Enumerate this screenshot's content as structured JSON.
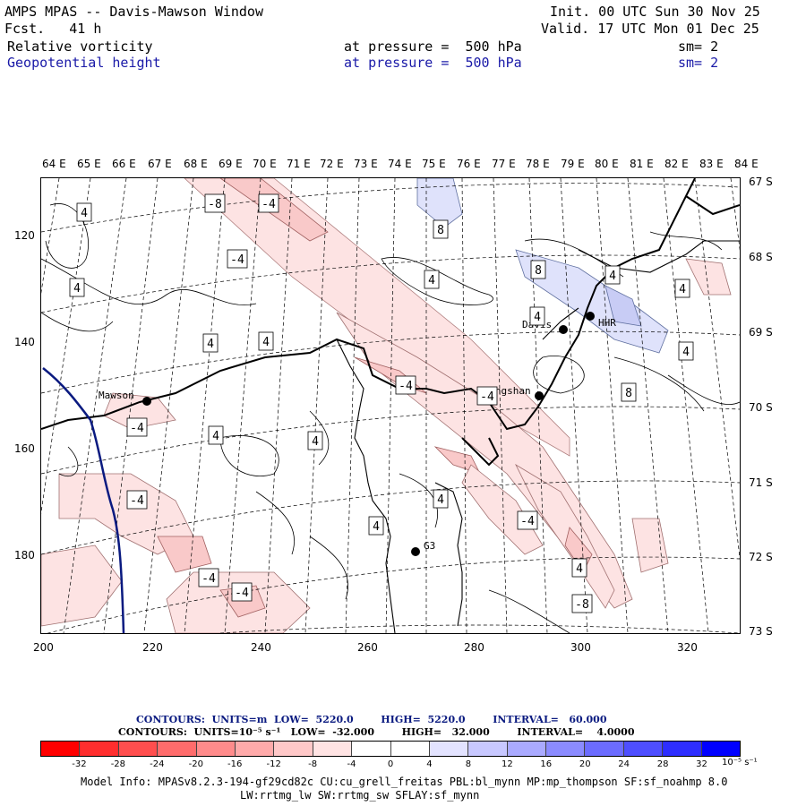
{
  "header": {
    "line1_left": "AMPS MPAS -- Davis-Mawson Window",
    "line2_left": "Fcst.   41 h",
    "line1_right": "Init. 00 UTC Sun 30 Nov 25",
    "line2_right": "Valid. 17 UTC Mon 01 Dec 25",
    "field1": {
      "name": "Relative vorticity",
      "level": "at pressure =  500 hPa",
      "sm": "sm= 2"
    },
    "field2": {
      "name": "Geopotential height",
      "level": "at pressure =  500 hPa",
      "sm": "sm= 2"
    }
  },
  "map": {
    "lon_labels": [
      "64 E",
      "65 E",
      "66 E",
      "67 E",
      "68 E",
      "69 E",
      "70 E",
      "71 E",
      "72 E",
      "73 E",
      "74 E",
      "75 E",
      "76 E",
      "77 E",
      "78 E",
      "79 E",
      "80 E",
      "81 E",
      "82 E",
      "83 E",
      "84 E"
    ],
    "lat_labels": [
      "67 S",
      "68 S",
      "69 S",
      "70 S",
      "71 S",
      "72 S",
      "73 S"
    ],
    "x_ticks": [
      "200",
      "220",
      "240",
      "260",
      "280",
      "300",
      "320"
    ],
    "y_ticks": [
      "120",
      "140",
      "160",
      "180"
    ],
    "stations": [
      "Mawson",
      "Davis",
      "Zhongshan",
      "G3",
      "HHR"
    ],
    "contour_labels": [
      "4",
      "-8",
      "-4",
      "8",
      "4",
      "-4",
      "4",
      "8",
      "4",
      "4",
      "4",
      "-4",
      "4",
      "4",
      "-4",
      "-4",
      "4",
      "4",
      "8",
      "-4",
      "4",
      "4",
      "-4",
      "4",
      "-4",
      "4",
      "-4",
      "-8",
      "-4"
    ],
    "colors": {
      "coast": "#000000",
      "height_contour": "#0a1a80",
      "pos_fill": "#dfe2fb",
      "neg_fill_light": "#fde3e3",
      "neg_fill_mid": "#f9c9c9"
    }
  },
  "legend": {
    "line1": "CONTOURS:  UNITS=m  LOW=  5220.0        HIGH=  5220.0        INTERVAL=   60.000",
    "line2": "CONTOURS:  UNITS=10⁻⁵ s⁻¹   LOW=  -32.000        HIGH=   32.000        INTERVAL=    4.0000",
    "colorbar_labels": [
      "-32",
      "-28",
      "-24",
      "-20",
      "-16",
      "-12",
      "-8",
      "-4",
      "0",
      "4",
      "8",
      "12",
      "16",
      "20",
      "24",
      "28",
      "32"
    ],
    "units_label": "10⁻⁵ s⁻¹",
    "colorbar_colors": [
      "#ff0000",
      "#ff2e2e",
      "#ff4e4e",
      "#ff6c6c",
      "#ff8b8b",
      "#ffaaaa",
      "#ffc8c8",
      "#ffe3e3",
      "#ffffff",
      "#ffffff",
      "#e3e3ff",
      "#c8c8ff",
      "#aaaaff",
      "#8b8bff",
      "#6c6cff",
      "#4e4eff",
      "#2e2eff",
      "#0000ff"
    ]
  },
  "footer": {
    "line1": "Model Info: MPASv8.2.3-194-gf29cd82c CU:cu_grell_freitas PBL:bl_mynn MP:mp_thompson SF:sf_noahmp 8.0",
    "line2": "LW:rrtmg_lw SW:rrtmg_sw SFLAY:sf_mynn"
  }
}
